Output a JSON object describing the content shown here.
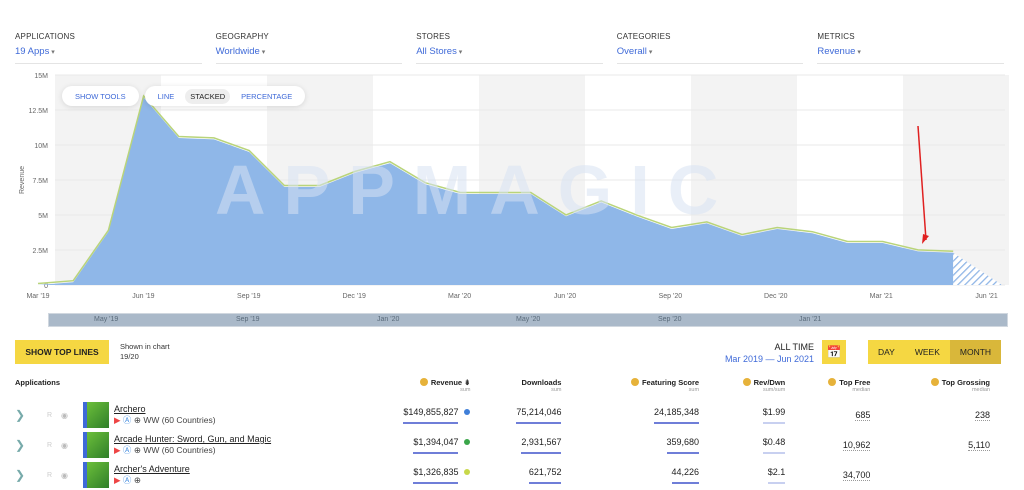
{
  "filters": [
    {
      "label": "APPLICATIONS",
      "value": "19 Apps"
    },
    {
      "label": "GEOGRAPHY",
      "value": "Worldwide"
    },
    {
      "label": "STORES",
      "value": "All Stores"
    },
    {
      "label": "CATEGORIES",
      "value": "Overall"
    },
    {
      "label": "METRICS",
      "value": "Revenue"
    }
  ],
  "tools": {
    "show_tools": "SHOW TOOLS",
    "line": "LINE",
    "stacked": "STACKED",
    "percentage": "PERCENTAGE"
  },
  "watermark": "APPMAGIC",
  "chart_data": {
    "type": "area",
    "ylabel": "Revenue",
    "ylim": [
      0,
      15000000
    ],
    "yticks": [
      "0",
      "2.5M",
      "5M",
      "7.5M",
      "10M",
      "12.5M",
      "15M"
    ],
    "xticks": [
      "Mar '19",
      "Jun '19",
      "Sep '19",
      "Dec '19",
      "Mar '20",
      "Jun '20",
      "Sep '20",
      "Dec '20",
      "Mar '21",
      "Jun '21"
    ],
    "x": [
      "2019-03",
      "2019-04",
      "2019-05",
      "2019-06",
      "2019-07",
      "2019-08",
      "2019-09",
      "2019-10",
      "2019-11",
      "2019-12",
      "2020-01",
      "2020-02",
      "2020-03",
      "2020-04",
      "2020-05",
      "2020-06",
      "2020-07",
      "2020-08",
      "2020-09",
      "2020-10",
      "2020-11",
      "2020-12",
      "2021-01",
      "2021-02",
      "2021-03",
      "2021-04",
      "2021-05"
    ],
    "series": [
      {
        "name": "Archero",
        "values": [
          0,
          0.2,
          3.8,
          13.4,
          10.5,
          10.4,
          9.5,
          7.0,
          7.0,
          8.0,
          8.7,
          7.2,
          6.5,
          6.5,
          6.5,
          4.9,
          5.9,
          4.9,
          4.0,
          4.4,
          3.5,
          4.0,
          3.7,
          3.0,
          3.0,
          2.4,
          2.3
        ]
      }
    ],
    "unit": "M",
    "partial_last": "Jun '21"
  },
  "navigator": [
    "May '19",
    "Sep '19",
    "Jan '20",
    "May '20",
    "Sep '20",
    "Jan '21"
  ],
  "controls": {
    "show_top_lines": "SHOW TOP LINES",
    "shown_label": "Shown in chart",
    "shown_value": "19/20",
    "all_time": "ALL TIME",
    "range": "Mar 2019 — Jun 2021",
    "periods": [
      "DAY",
      "WEEK",
      "MONTH"
    ]
  },
  "table": {
    "headers": [
      {
        "label": "Applications"
      },
      {
        "label": "Revenue",
        "sub": "sum"
      },
      {
        "label": "Downloads",
        "sub": "sum"
      },
      {
        "label": "Featuring Score",
        "sub": "sum"
      },
      {
        "label": "Rev/Dwn",
        "sub": "sum/sum"
      },
      {
        "label": "Top Free",
        "sub": "median"
      },
      {
        "label": "Top Grossing",
        "sub": "median"
      }
    ],
    "rows": [
      {
        "name": "Archero",
        "region": "WW (60 Countries)",
        "revenue": "$149,855,827",
        "downloads": "75,214,046",
        "featuring": "24,185,348",
        "rev_dwn": "$1.99",
        "top_free": "685",
        "top_grossing": "238",
        "color": "#3f7fd8"
      },
      {
        "name": "Arcade Hunter: Sword, Gun, and Magic",
        "region": "WW (60 Countries)",
        "revenue": "$1,394,047",
        "downloads": "2,931,567",
        "featuring": "359,680",
        "rev_dwn": "$0.48",
        "top_free": "10,962",
        "top_grossing": "5,110",
        "color": "#3aa64a"
      },
      {
        "name": "Archer's Adventure",
        "region": "",
        "revenue": "$1,326,835",
        "downloads": "621,752",
        "featuring": "44,226",
        "rev_dwn": "$2.1",
        "top_free": "34,700",
        "top_grossing": "",
        "color": "#c8d84a"
      }
    ]
  }
}
